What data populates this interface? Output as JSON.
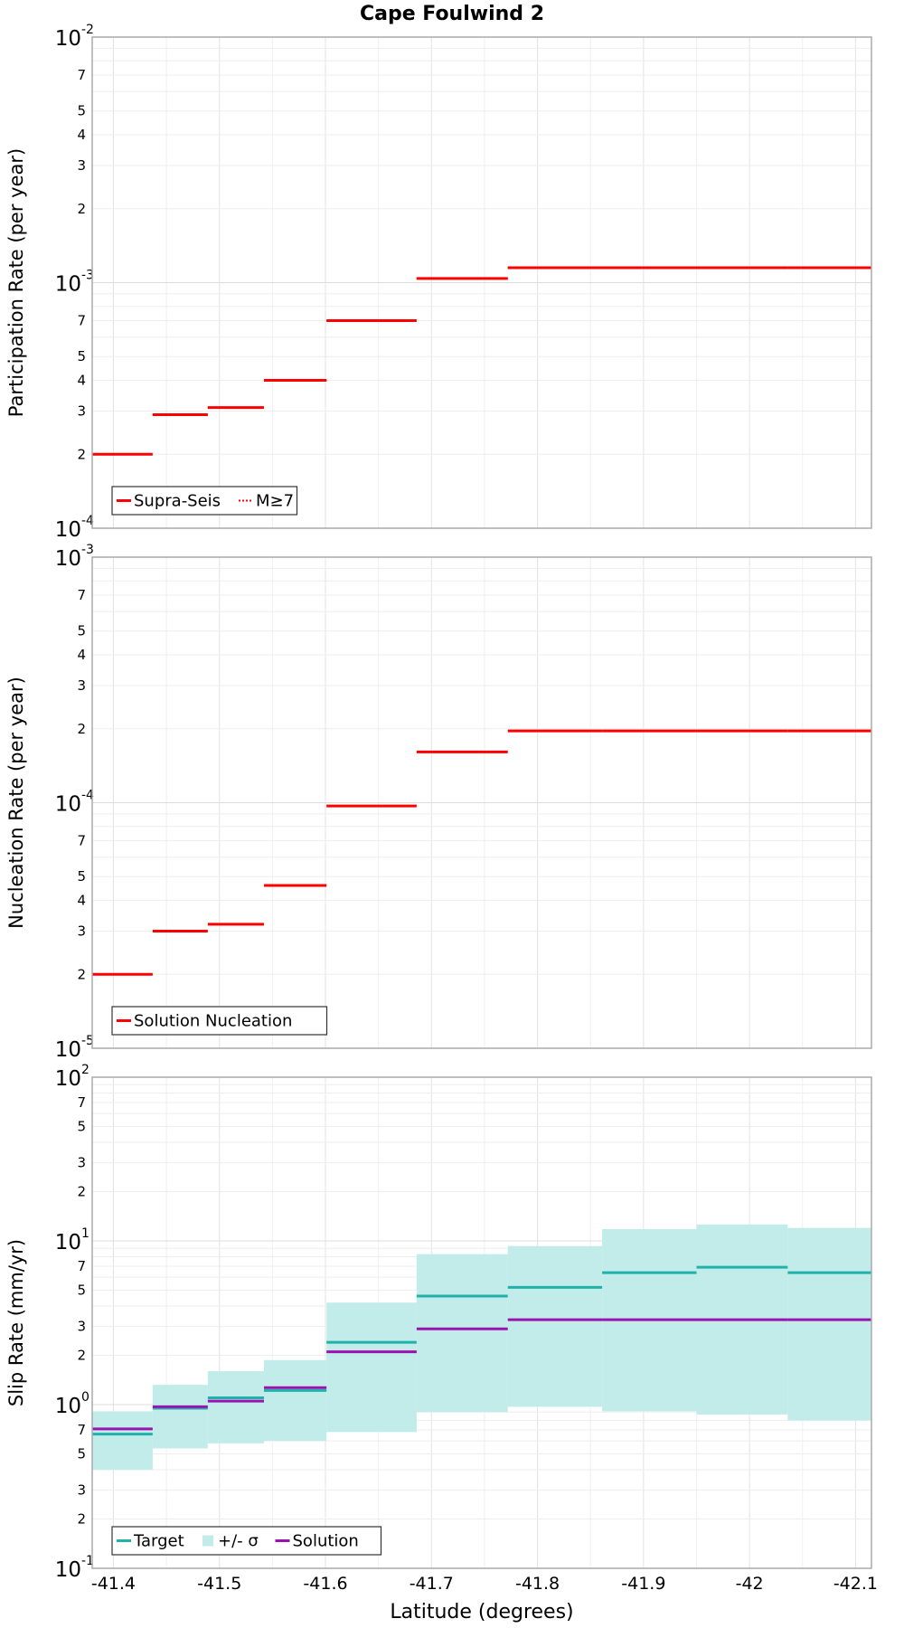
{
  "chart_data": {
    "title": "Cape Foulwind 2",
    "xlabel": "Latitude (degrees)",
    "xlim": [
      -41.38,
      -42.115
    ],
    "xticks": [
      -41.4,
      -41.5,
      -41.6,
      -41.7,
      -41.8,
      -41.9,
      -42.0,
      -42.1
    ],
    "xtick_labels": [
      "-41.4",
      "-41.5",
      "-41.6",
      "-41.7",
      "-41.8",
      "-41.9",
      "-42",
      "-42.1"
    ],
    "bin_edges": [
      -41.38,
      -41.437,
      -41.489,
      -41.542,
      -41.601,
      -41.686,
      -41.772,
      -41.861,
      -41.95,
      -42.036,
      -42.115
    ],
    "panels": [
      {
        "type": "line",
        "scale": "log",
        "ylabel": "Participation Rate (per year)",
        "ylim": [
          0.0001,
          0.01
        ],
        "tick_values": [
          0.0001,
          0.001,
          0.01
        ],
        "tick_mantissa": [
          "10",
          "10",
          "10"
        ],
        "tick_exp": [
          "-4",
          "-3",
          "-2"
        ],
        "minor_labels": [
          "2",
          "3",
          "4",
          "5",
          "7"
        ],
        "legend": [
          "Supra-Seis",
          "M≥7"
        ],
        "series": [
          {
            "name": "Supra-Seis",
            "color": "#ff0000",
            "style": "solid",
            "values": [
              0.0002,
              0.00029,
              0.00031,
              0.0004,
              0.0007,
              0.00104,
              0.00115,
              0.00115,
              0.00115,
              0.00115
            ]
          },
          {
            "name": "M≥7",
            "color": "#ff0000",
            "style": "dotted",
            "values": [
              0.0002,
              0.00029,
              0.00031,
              0.0004,
              0.0007,
              0.00104,
              0.00115,
              0.00115,
              0.00115,
              0.00115
            ]
          }
        ]
      },
      {
        "type": "line",
        "scale": "log",
        "ylabel": "Nucleation Rate (per year)",
        "ylim": [
          1e-05,
          0.001
        ],
        "tick_values": [
          1e-05,
          0.0001,
          0.001
        ],
        "tick_mantissa": [
          "10",
          "10",
          "10"
        ],
        "tick_exp": [
          "-5",
          "-4",
          "-3"
        ],
        "minor_labels": [
          "2",
          "3",
          "4",
          "5",
          "7"
        ],
        "legend": [
          "Solution Nucleation"
        ],
        "series": [
          {
            "name": "Solution Nucleation",
            "color": "#ff0000",
            "style": "solid",
            "values": [
              2e-05,
              3e-05,
              3.2e-05,
              4.6e-05,
              9.7e-05,
              0.000161,
              0.000196,
              0.000196,
              0.000196,
              0.000196
            ]
          }
        ]
      },
      {
        "type": "line",
        "scale": "log",
        "ylabel": "Slip Rate (mm/yr)",
        "ylim": [
          0.1,
          100
        ],
        "tick_values": [
          0.1,
          1,
          10,
          100
        ],
        "tick_mantissa": [
          "10",
          "10",
          "10",
          "10"
        ],
        "tick_exp": [
          "-1",
          "0",
          "1",
          "2"
        ],
        "minor_labels": [
          "2",
          "3",
          "5",
          "7"
        ],
        "legend": [
          "Target",
          "+/- σ",
          "Solution"
        ],
        "band": {
          "name": "+/- σ",
          "color": "#c2ecea",
          "lower": [
            0.4,
            0.54,
            0.58,
            0.6,
            0.68,
            0.9,
            0.97,
            0.91,
            0.87,
            0.8
          ],
          "upper": [
            0.91,
            1.32,
            1.6,
            1.87,
            4.2,
            8.3,
            9.3,
            11.8,
            12.6,
            12.0
          ]
        },
        "series": [
          {
            "name": "Target",
            "color": "#20b2aa",
            "style": "solid",
            "values": [
              0.66,
              0.95,
              1.1,
              1.22,
              2.4,
              4.6,
              5.2,
              6.4,
              6.9,
              6.4
            ]
          },
          {
            "name": "Solution",
            "color": "#9b12b0",
            "style": "solid",
            "values": [
              0.71,
              0.97,
              1.05,
              1.27,
              2.1,
              2.9,
              3.3,
              3.3,
              3.3,
              3.3
            ]
          }
        ]
      }
    ]
  }
}
